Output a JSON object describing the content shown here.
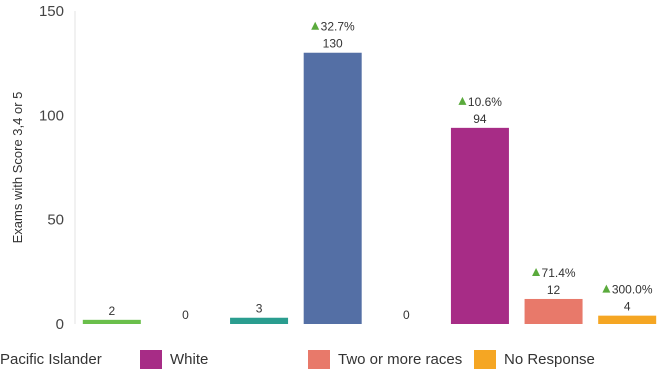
{
  "chart_data": {
    "type": "bar",
    "ylabel": "Exams with Score 3,4 or 5",
    "ylim": [
      0,
      150
    ],
    "yticks": [
      0,
      50,
      100,
      150
    ],
    "grid": false,
    "series": [
      {
        "name": "",
        "value": 2,
        "label": "2",
        "change": "",
        "color": "#6abf4b"
      },
      {
        "name": "",
        "value": 0,
        "label": "0",
        "change": "",
        "color": "#cccccc"
      },
      {
        "name": "",
        "value": 3,
        "label": "3",
        "change": "",
        "color": "#2a9d8f"
      },
      {
        "name": "",
        "value": 130,
        "label": "130",
        "change": "32.7%",
        "color": "#546fa5"
      },
      {
        "name": "Pacific Islander",
        "value": 0,
        "label": "0",
        "change": "",
        "color": "#cccccc"
      },
      {
        "name": "White",
        "value": 94,
        "label": "94",
        "change": "10.6%",
        "color": "#a72c86"
      },
      {
        "name": "Two or more races",
        "value": 12,
        "label": "12",
        "change": "71.4%",
        "color": "#e8796a"
      },
      {
        "name": "No Response",
        "value": 4,
        "label": "4",
        "change": "300.0%",
        "color": "#f5a623"
      }
    ],
    "up_marker_color": "#5aaa3c"
  }
}
